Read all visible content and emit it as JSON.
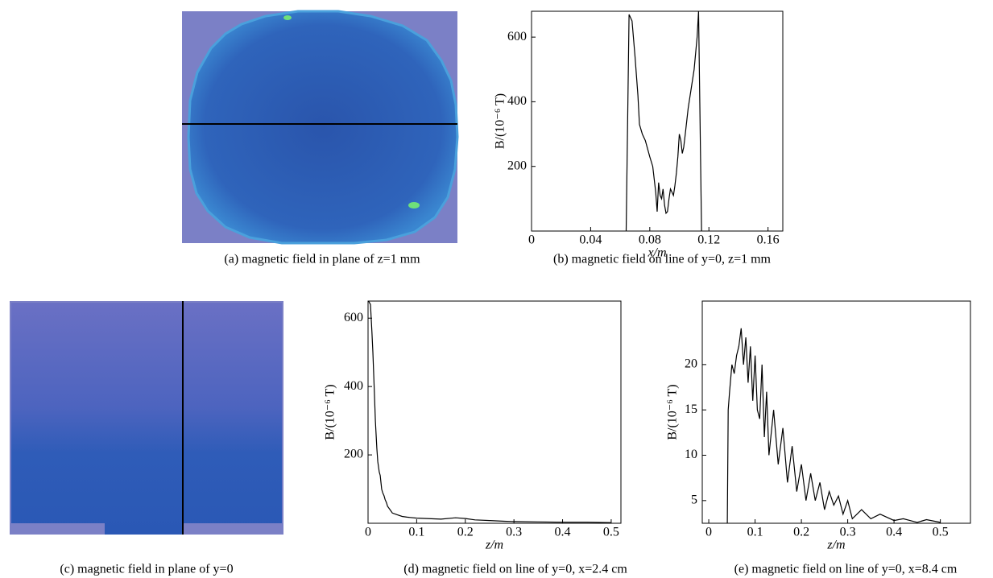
{
  "chart_data": [
    {
      "type": "image",
      "caption": "(a) magnetic field in plane of z=1 mm"
    },
    {
      "type": "line",
      "caption": "(b) magnetic field on line of y=0, z=1 mm",
      "x_label": "x/m",
      "y_label": "B/(10⁻⁶ T)",
      "color": "#000000",
      "x": [
        0.064,
        0.066,
        0.068,
        0.07,
        0.072,
        0.073,
        0.075,
        0.077,
        0.08,
        0.082,
        0.084,
        0.085,
        0.086,
        0.087,
        0.088,
        0.089,
        0.09,
        0.091,
        0.092,
        0.093,
        0.094,
        0.095,
        0.096,
        0.097,
        0.098,
        0.099,
        0.1,
        0.101,
        0.102,
        0.103,
        0.104,
        0.105,
        0.106,
        0.108,
        0.11,
        0.112,
        0.113,
        0.115
      ],
      "values": [
        0,
        670,
        650,
        540,
        420,
        330,
        300,
        280,
        230,
        200,
        120,
        60,
        150,
        110,
        100,
        130,
        80,
        55,
        60,
        100,
        130,
        120,
        110,
        140,
        180,
        230,
        300,
        280,
        240,
        260,
        300,
        340,
        380,
        440,
        500,
        600,
        680,
        0
      ],
      "xlim": [
        0,
        0.17
      ],
      "ylim": [
        0,
        680
      ],
      "xticks": [
        0,
        0.04,
        0.08,
        0.12,
        0.16
      ],
      "yticks": [
        200,
        400,
        600
      ]
    },
    {
      "type": "image",
      "caption": "(c) magnetic field in plane of y=0"
    },
    {
      "type": "line",
      "caption": "(d) magnetic field on line of y=0, x=2.4 cm",
      "x_label": "z/m",
      "y_label": "B/(10⁻⁶ T)",
      "color": "#000000",
      "x": [
        0.001,
        0.005,
        0.008,
        0.01,
        0.013,
        0.015,
        0.018,
        0.02,
        0.023,
        0.025,
        0.028,
        0.03,
        0.033,
        0.035,
        0.038,
        0.04,
        0.045,
        0.05,
        0.06,
        0.07,
        0.08,
        0.1,
        0.12,
        0.15,
        0.18,
        0.2,
        0.22,
        0.25,
        0.28,
        0.3,
        0.35,
        0.4,
        0.45,
        0.5
      ],
      "values": [
        650,
        640,
        560,
        500,
        380,
        300,
        220,
        180,
        150,
        140,
        100,
        90,
        80,
        70,
        60,
        50,
        40,
        30,
        25,
        20,
        18,
        15,
        14,
        12,
        16,
        14,
        10,
        8,
        6,
        5,
        4,
        3,
        3,
        2
      ],
      "xlim": [
        0,
        0.52
      ],
      "ylim": [
        0,
        650
      ],
      "xticks": [
        0,
        0.1,
        0.2,
        0.3,
        0.4,
        0.5
      ],
      "yticks": [
        200,
        400,
        600
      ]
    },
    {
      "type": "line",
      "caption": "(e) magnetic field on line of y=0, x=8.4 cm",
      "x_label": "z/m",
      "y_label": "B/(10⁻⁶ T)",
      "color": "#000000",
      "x": [
        0.04,
        0.042,
        0.045,
        0.05,
        0.055,
        0.06,
        0.065,
        0.07,
        0.075,
        0.08,
        0.085,
        0.09,
        0.095,
        0.1,
        0.105,
        0.11,
        0.115,
        0.12,
        0.125,
        0.13,
        0.14,
        0.15,
        0.16,
        0.17,
        0.18,
        0.19,
        0.2,
        0.21,
        0.22,
        0.23,
        0.24,
        0.25,
        0.26,
        0.27,
        0.28,
        0.29,
        0.3,
        0.31,
        0.33,
        0.35,
        0.37,
        0.4,
        0.42,
        0.45,
        0.47,
        0.5
      ],
      "values": [
        2.5,
        15,
        17,
        20,
        19,
        21,
        22,
        24,
        20,
        23,
        18,
        22,
        16,
        21,
        15,
        14,
        20,
        12,
        17,
        10,
        15,
        9,
        13,
        7,
        11,
        6,
        9,
        5,
        8,
        5,
        7,
        4,
        6,
        4.5,
        5.5,
        3.5,
        5,
        3,
        4,
        3,
        3.5,
        2.8,
        3,
        2.6,
        2.9,
        2.6
      ],
      "xlim": [
        -0.014,
        0.565
      ],
      "ylim": [
        2.5,
        27
      ],
      "xticks": [
        0,
        0.1,
        0.2,
        0.3,
        0.4,
        0.5
      ],
      "yticks": [
        5,
        10,
        15,
        20
      ]
    }
  ]
}
